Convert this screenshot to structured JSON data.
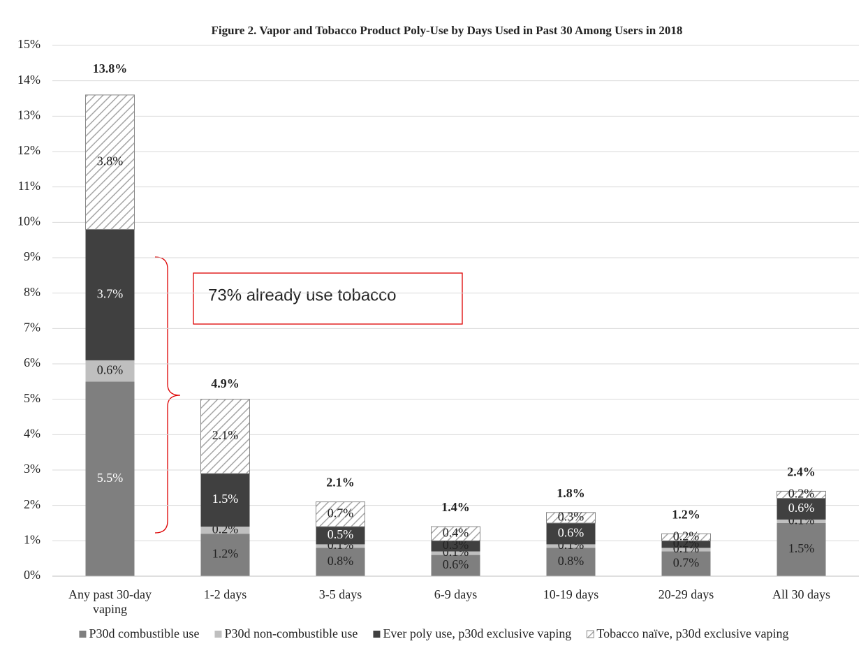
{
  "chart_data": {
    "type": "stacked-bar",
    "title": "Figure 2. Vapor and Tobacco Product Poly-Use by Days Used in Past 30 Among Users in 2018",
    "categories": [
      "Any past 30-day vaping",
      "1-2 days",
      "3-5 days",
      "6-9 days",
      "10-19 days",
      "20-29 days",
      "All 30 days"
    ],
    "series": [
      {
        "name": "P30d combustible use",
        "color": "#7f7f7f",
        "values": [
          5.5,
          1.2,
          0.8,
          0.6,
          0.8,
          0.7,
          1.5
        ],
        "value_labels": [
          "5.5%",
          "1.2%",
          "0.8%",
          "0.6%",
          "0.8%",
          "0.7%",
          "1.5%"
        ]
      },
      {
        "name": "P30d non-combustible use",
        "color": "#bfbfbf",
        "values": [
          0.6,
          0.2,
          0.1,
          0.1,
          0.1,
          0.1,
          0.1
        ],
        "value_labels": [
          "0.6%",
          "0.2%",
          "0.1%",
          "0.1%",
          "0.1%",
          "0.1%",
          "0.1%"
        ]
      },
      {
        "name": "Ever poly use, p30d exclusive vaping",
        "color": "#404040",
        "values": [
          3.7,
          1.5,
          0.5,
          0.3,
          0.6,
          0.2,
          0.6
        ],
        "value_labels": [
          "3.7%",
          "1.5%",
          "0.5%",
          "0.3%",
          "0.6%",
          "0.2%",
          "0.6%"
        ]
      },
      {
        "name": "Tobacco naïve, p30d exclusive vaping",
        "color": "#a6a6a6",
        "hatch": true,
        "values": [
          3.8,
          2.1,
          0.7,
          0.4,
          0.3,
          0.2,
          0.2
        ],
        "value_labels": [
          "3.8%",
          "2.1%",
          "0.7%",
          "0.4%",
          "0.3%",
          "0.2%",
          "0.2%"
        ]
      }
    ],
    "totals": [
      13.8,
      4.9,
      2.1,
      1.4,
      1.8,
      1.2,
      2.4
    ],
    "total_labels": [
      "13.8%",
      "4.9%",
      "2.1%",
      "1.4%",
      "1.8%",
      "1.2%",
      "2.4%"
    ],
    "ylim": [
      0,
      15
    ],
    "yticks": [
      {
        "value": 0,
        "label": "0%"
      },
      {
        "value": 1,
        "label": "1%"
      },
      {
        "value": 2,
        "label": "2%"
      },
      {
        "value": 3,
        "label": "3%"
      },
      {
        "value": 4,
        "label": "4%"
      },
      {
        "value": 5,
        "label": "5%"
      },
      {
        "value": 6,
        "label": "6%"
      },
      {
        "value": 7,
        "label": "7%"
      },
      {
        "value": 8,
        "label": "8%"
      },
      {
        "value": 9,
        "label": "9%"
      },
      {
        "value": 10,
        "label": "10%"
      },
      {
        "value": 11,
        "label": "11%"
      },
      {
        "value": 12,
        "label": "12%"
      },
      {
        "value": 13,
        "label": "13%"
      },
      {
        "value": 14,
        "label": "14%"
      },
      {
        "value": 15,
        "label": "15%"
      }
    ],
    "grid": true,
    "legend": "bottom",
    "annotation": "73% already use tobacco"
  }
}
